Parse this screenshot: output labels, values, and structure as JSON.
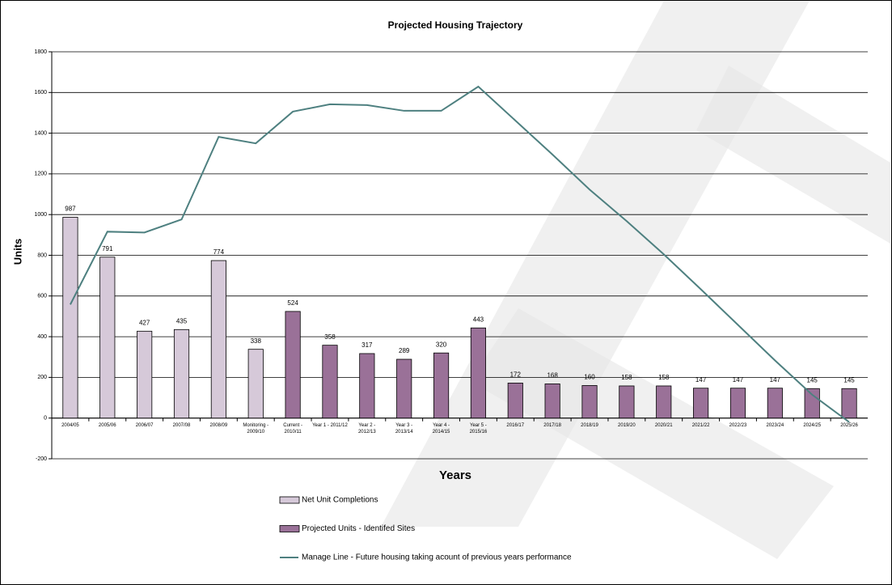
{
  "chart_data": {
    "type": "bar",
    "title": "Projected Housing Trajectory",
    "x_label": "Years",
    "y_label": "Units",
    "categories": [
      "2004/05",
      "2005/06",
      "2006/07",
      "2007/08",
      "2008/09",
      "Monitoring - 2009/10",
      "Current - 2010/11",
      "Year 1 - 2011/12",
      "Year 2 - 2012/13",
      "Year 3 - 2013/14",
      "Year 4 - 2014/15",
      "Year 5 - 2015/16",
      "2016/17",
      "2017/18",
      "2018/19",
      "2019/20",
      "2020/21",
      "2021/22",
      "2022/23",
      "2023/24",
      "2024/25",
      "2025/26"
    ],
    "series": [
      {
        "name": "Net Unit Completions",
        "type": "bar",
        "color": "#d6c9d9",
        "values": [
          987,
          791,
          427,
          435,
          774,
          338,
          null,
          null,
          null,
          null,
          null,
          null,
          null,
          null,
          null,
          null,
          null,
          null,
          null,
          null,
          null,
          null
        ]
      },
      {
        "name": "Projected Units - Identifed Sites",
        "type": "bar",
        "color": "#9a7198",
        "values": [
          null,
          null,
          null,
          null,
          null,
          null,
          524,
          358,
          317,
          289,
          320,
          443,
          172,
          168,
          160,
          158,
          158,
          147,
          147,
          147,
          145,
          145
        ]
      },
      {
        "name": "Manage Line - Future housing taking acount of previous years performance",
        "type": "line",
        "color": "#4e8080",
        "values": [
          558,
          916,
          912,
          976,
          1382,
          1350,
          1506,
          1542,
          1538,
          1510,
          1510,
          1629,
          1462,
          1295,
          1123,
          968,
          805,
          633,
          458,
          283,
          115,
          -20
        ]
      }
    ],
    "ylim": [
      -200,
      1800
    ],
    "yticks": [
      -200,
      0,
      200,
      400,
      600,
      800,
      1000,
      1200,
      1400,
      1600,
      1800
    ],
    "grid": true
  }
}
